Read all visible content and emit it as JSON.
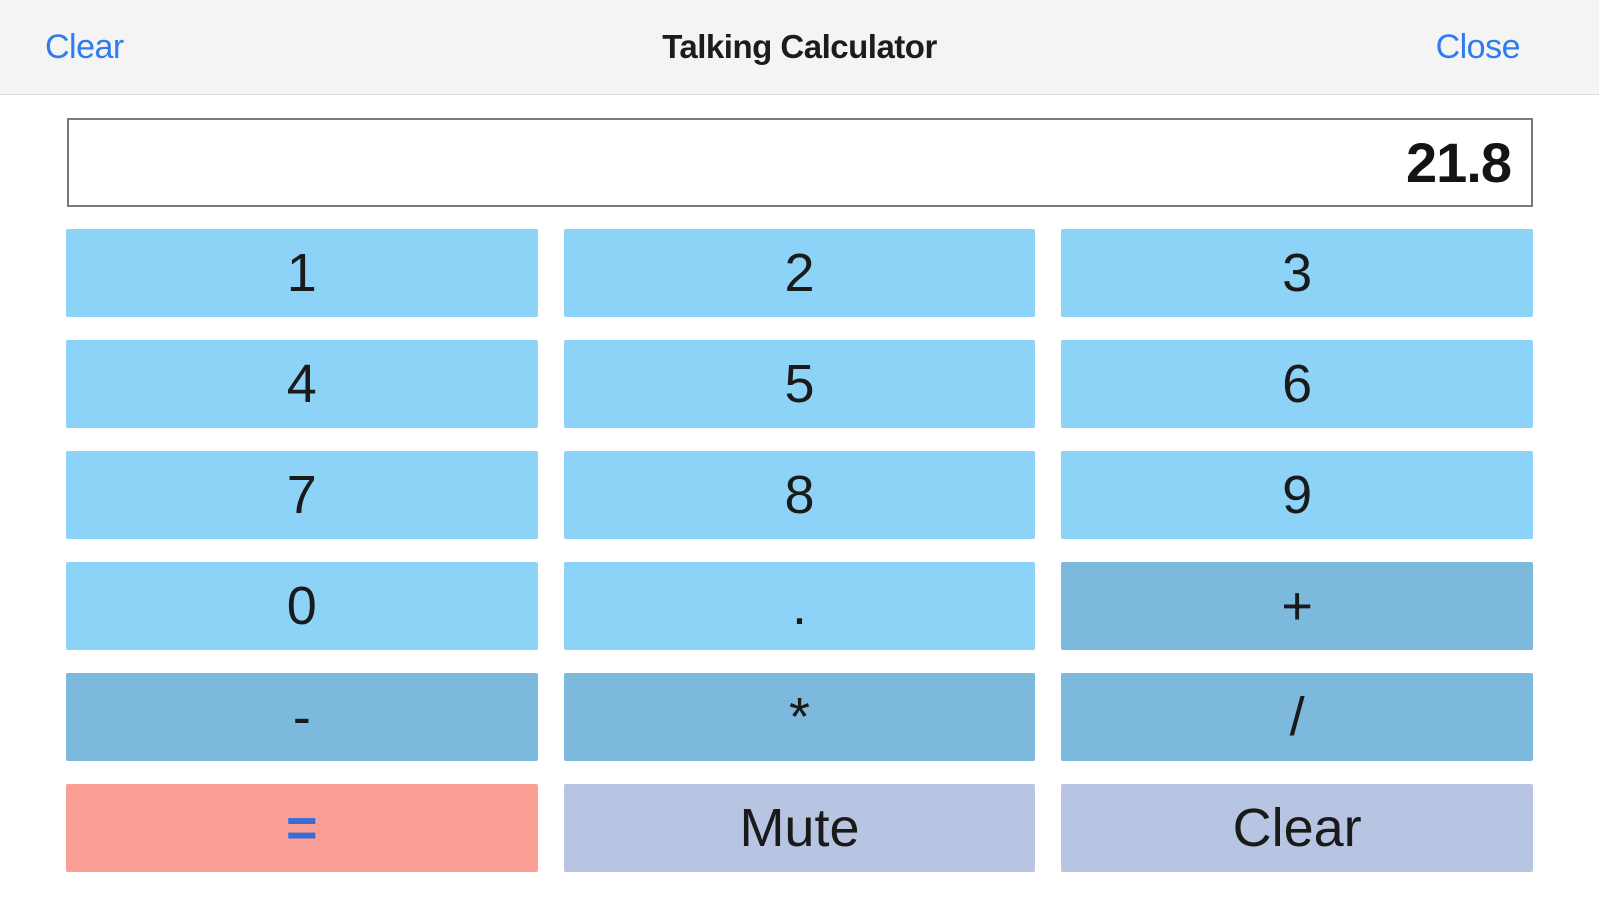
{
  "header": {
    "left_button": "Clear",
    "title": "Talking Calculator",
    "right_button": "Close"
  },
  "display": {
    "value": "21.8"
  },
  "keypad": {
    "buttons": [
      {
        "label": "1",
        "type": "digit"
      },
      {
        "label": "2",
        "type": "digit"
      },
      {
        "label": "3",
        "type": "digit"
      },
      {
        "label": "4",
        "type": "digit"
      },
      {
        "label": "5",
        "type": "digit"
      },
      {
        "label": "6",
        "type": "digit"
      },
      {
        "label": "7",
        "type": "digit"
      },
      {
        "label": "8",
        "type": "digit"
      },
      {
        "label": "9",
        "type": "digit"
      },
      {
        "label": "0",
        "type": "digit"
      },
      {
        "label": ".",
        "type": "digit"
      },
      {
        "label": "+",
        "type": "operator"
      },
      {
        "label": "-",
        "type": "operator"
      },
      {
        "label": "*",
        "type": "operator"
      },
      {
        "label": "/",
        "type": "operator"
      },
      {
        "label": "=",
        "type": "equals"
      },
      {
        "label": "Mute",
        "type": "secondary"
      },
      {
        "label": "Clear",
        "type": "secondary"
      }
    ]
  },
  "colors": {
    "link_blue": "#2e7cf0",
    "header_bg": "#f4f4f5",
    "key_digit": "#8dd3f8",
    "key_operator": "#7db9dd",
    "key_equals_bg": "#fa9e96",
    "key_equals_text": "#3a6ed5",
    "key_secondary": "#b8c5e2"
  }
}
